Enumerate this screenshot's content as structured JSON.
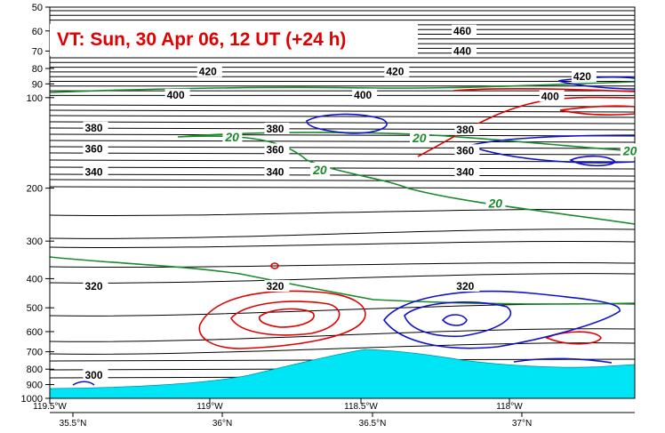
{
  "chart_data": {
    "type": "cross-section",
    "title": "VT:  Sun, 30 Apr 06, 12 UT (+24 h)",
    "y_axis": {
      "scale": "log",
      "range": [
        1000,
        50
      ],
      "ticks": [
        50,
        60,
        70,
        80,
        90,
        100,
        200,
        300,
        400,
        500,
        600,
        700,
        800,
        900,
        1000
      ],
      "tick_labels": [
        "50",
        "60",
        "70",
        "80",
        "90",
        "100",
        "200",
        "300",
        "400",
        "500",
        "600",
        "700",
        "800",
        "900",
        "1000"
      ]
    },
    "x_axis_lon": {
      "ticks": [
        -119.5,
        -119,
        -118.5,
        -118
      ],
      "tick_labels": [
        "119.5°W",
        "119°W",
        "118.5°W",
        "118°W"
      ]
    },
    "x_axis_lat": {
      "ticks": [
        35.5,
        36,
        36.5,
        37
      ],
      "tick_labels": [
        "35.5°N",
        "36°N",
        "36.5°N",
        "37°N"
      ]
    },
    "theta_labels": [
      {
        "text": "460",
        "fx": 0.69,
        "p": 60
      },
      {
        "text": "440",
        "fx": 0.69,
        "p": 70
      },
      {
        "text": "420",
        "fx": 0.255,
        "p": 82
      },
      {
        "text": "420",
        "fx": 0.575,
        "p": 82
      },
      {
        "text": "420",
        "fx": 0.895,
        "p": 85
      },
      {
        "text": "400",
        "fx": 0.2,
        "p": 98
      },
      {
        "text": "400",
        "fx": 0.52,
        "p": 98
      },
      {
        "text": "400",
        "fx": 0.84,
        "p": 99
      },
      {
        "text": "380",
        "fx": 0.06,
        "p": 126
      },
      {
        "text": "380",
        "fx": 0.37,
        "p": 127
      },
      {
        "text": "380",
        "fx": 0.695,
        "p": 128
      },
      {
        "text": "360",
        "fx": 0.06,
        "p": 148
      },
      {
        "text": "360",
        "fx": 0.37,
        "p": 149
      },
      {
        "text": "360",
        "fx": 0.695,
        "p": 150
      },
      {
        "text": "340",
        "fx": 0.06,
        "p": 177
      },
      {
        "text": "340",
        "fx": 0.37,
        "p": 177
      },
      {
        "text": "340",
        "fx": 0.695,
        "p": 177
      },
      {
        "text": "320",
        "fx": 0.06,
        "p": 424
      },
      {
        "text": "320",
        "fx": 0.37,
        "p": 424
      },
      {
        "text": "320",
        "fx": 0.695,
        "p": 424
      },
      {
        "text": "300",
        "fx": 0.06,
        "p": 838
      }
    ],
    "wind_labels": [
      {
        "text": "20",
        "fx": 0.3,
        "p": 136
      },
      {
        "text": "20",
        "fx": 0.62,
        "p": 137
      },
      {
        "text": "20",
        "fx": 0.45,
        "p": 175
      },
      {
        "text": "20",
        "fx": 0.75,
        "p": 226
      },
      {
        "text": "20",
        "fx": 0.98,
        "p": 151
      }
    ],
    "colors": {
      "isentropes": "#000000",
      "wind": "#1a8a2a",
      "red_contours": "#e00000",
      "blue_contours": "#1010d0",
      "terrain": "#00e5f5",
      "title": "#e00000"
    }
  }
}
